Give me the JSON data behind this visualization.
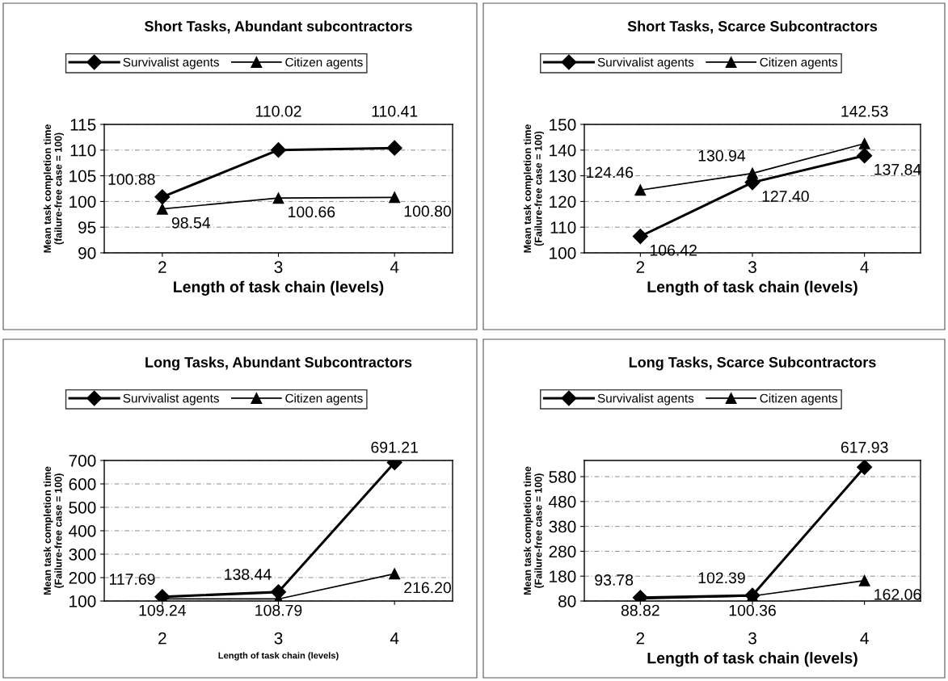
{
  "chart_data": [
    {
      "type": "line",
      "title": "Short Tasks, Abundant subcontractors",
      "xlabel": "Length of task chain (levels)",
      "ylabel": "Mean task completion time\n(failure-free case = 100)",
      "categories": [
        "2",
        "3",
        "4"
      ],
      "ylim": [
        90,
        115
      ],
      "yticks": [
        90,
        95,
        100,
        105,
        110,
        115
      ],
      "grid": "y",
      "legend": "top",
      "series": [
        {
          "name": "Survivalist agents",
          "color": "#000000",
          "marker": "diamond",
          "values": [
            100.88,
            110.02,
            110.41
          ],
          "value_labels": [
            "100.88",
            "110.02",
            "110.41"
          ]
        },
        {
          "name": "Citizen agents",
          "color": "#000000",
          "marker": "triangle",
          "values": [
            98.54,
            100.66,
            100.8
          ],
          "value_labels": [
            "98.54",
            "100.66",
            "100.80"
          ]
        }
      ]
    },
    {
      "type": "line",
      "title": "Short Tasks, Scarce Subcontractors",
      "xlabel": "Length of task chain (levels)",
      "ylabel": "Mean task completion time\n(Failure-free case = 100)",
      "categories": [
        "2",
        "3",
        "4"
      ],
      "ylim": [
        100,
        150
      ],
      "yticks": [
        100,
        110,
        120,
        130,
        140,
        150
      ],
      "grid": "y",
      "legend": "top",
      "series": [
        {
          "name": "Survivalist agents",
          "color": "#000000",
          "marker": "diamond",
          "values": [
            106.42,
            127.4,
            137.84
          ],
          "value_labels": [
            "106.42",
            "127.40",
            "137.84"
          ]
        },
        {
          "name": "Citizen agents",
          "color": "#000000",
          "marker": "triangle",
          "values": [
            124.46,
            130.94,
            142.53
          ],
          "value_labels": [
            "124.46",
            "130.94",
            "142.53"
          ]
        }
      ]
    },
    {
      "type": "line",
      "title": "Long Tasks, Abundant Subcontractors",
      "xlabel": "Length of task chain (levels)",
      "ylabel": "Mean task completion time\n(Failure-free case = 100)",
      "categories": [
        "2",
        "3",
        "4"
      ],
      "ylim": [
        100,
        700
      ],
      "yticks": [
        100,
        200,
        300,
        400,
        500,
        600,
        700
      ],
      "grid": "y",
      "legend": "top",
      "series": [
        {
          "name": "Survivalist agents",
          "color": "#000000",
          "marker": "diamond",
          "values": [
            117.69,
            138.44,
            691.21
          ],
          "value_labels": [
            "117.69",
            "138.44",
            "691.21"
          ]
        },
        {
          "name": "Citizen agents",
          "color": "#000000",
          "marker": "triangle",
          "values": [
            109.24,
            108.79,
            216.2
          ],
          "value_labels": [
            "109.24",
            "108.79",
            "216.20"
          ]
        }
      ]
    },
    {
      "type": "line",
      "title": "Long Tasks, Scarce Subcontractors",
      "xlabel": "Length of task chain (levels)",
      "ylabel": "Mean task completion time\n(Failure-free case = 100)",
      "categories": [
        "2",
        "3",
        "4"
      ],
      "ylim": [
        80,
        645
      ],
      "yticks": [
        80,
        180,
        280,
        380,
        480,
        580
      ],
      "grid": "y",
      "legend": "top",
      "series": [
        {
          "name": "Survivalist agents",
          "color": "#000000",
          "marker": "diamond",
          "values": [
            93.78,
            102.39,
            617.93
          ],
          "value_labels": [
            "93.78",
            "102.39",
            "617.93"
          ]
        },
        {
          "name": "Citizen agents",
          "color": "#000000",
          "marker": "triangle",
          "values": [
            88.82,
            100.36,
            162.06
          ],
          "value_labels": [
            "88.82",
            "100.36",
            "162.06"
          ]
        }
      ]
    }
  ]
}
